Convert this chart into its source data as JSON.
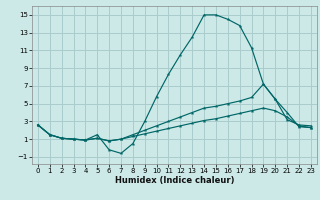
{
  "xlabel": "Humidex (Indice chaleur)",
  "background_color": "#cce9e8",
  "grid_color": "#aacccc",
  "line_color": "#006666",
  "xlim": [
    -0.5,
    23.5
  ],
  "ylim": [
    -1.8,
    16.0
  ],
  "xticks": [
    0,
    1,
    2,
    3,
    4,
    5,
    6,
    7,
    8,
    9,
    10,
    11,
    12,
    13,
    14,
    15,
    16,
    17,
    18,
    19,
    20,
    21,
    22,
    23
  ],
  "yticks": [
    -1,
    1,
    3,
    5,
    7,
    9,
    11,
    13,
    15
  ],
  "line1_x": [
    0,
    1,
    2,
    3,
    4,
    5,
    6,
    7,
    8,
    9,
    10,
    11,
    12,
    13,
    14,
    15,
    16,
    17,
    18,
    19,
    20,
    21,
    22,
    23
  ],
  "line1_y": [
    2.6,
    1.5,
    1.1,
    1.0,
    0.9,
    1.1,
    0.8,
    1.0,
    1.3,
    1.6,
    1.9,
    2.2,
    2.5,
    2.8,
    3.1,
    3.3,
    3.6,
    3.9,
    4.2,
    4.5,
    4.2,
    3.5,
    2.5,
    2.3
  ],
  "line2_x": [
    0,
    1,
    2,
    3,
    4,
    5,
    6,
    7,
    8,
    9,
    10,
    11,
    12,
    13,
    14,
    15,
    16,
    17,
    18,
    19,
    20,
    21,
    22,
    23
  ],
  "line2_y": [
    2.6,
    1.5,
    1.1,
    1.0,
    0.9,
    1.1,
    0.8,
    1.0,
    1.5,
    2.0,
    2.5,
    3.0,
    3.5,
    4.0,
    4.5,
    4.7,
    5.0,
    5.3,
    5.7,
    7.2,
    5.5,
    4.0,
    2.4,
    2.3
  ],
  "line3_x": [
    0,
    1,
    2,
    3,
    4,
    5,
    6,
    7,
    8,
    9,
    10,
    11,
    12,
    13,
    14,
    15,
    16,
    17,
    18,
    19,
    20,
    21,
    22,
    23
  ],
  "line3_y": [
    2.6,
    1.5,
    1.1,
    1.0,
    0.9,
    1.5,
    -0.2,
    -0.6,
    0.5,
    3.0,
    5.8,
    8.3,
    10.5,
    12.5,
    15.0,
    15.0,
    14.5,
    13.8,
    11.3,
    7.2,
    5.5,
    3.2,
    2.6,
    2.5
  ]
}
